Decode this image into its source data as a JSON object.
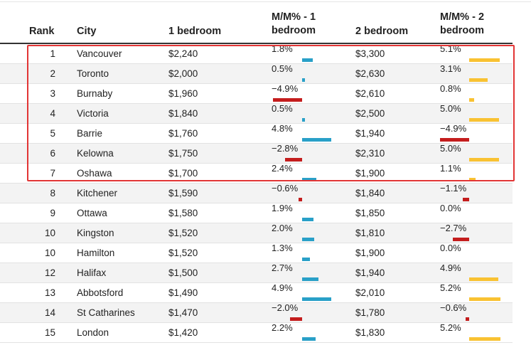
{
  "columns": {
    "rank": "Rank",
    "city": "City",
    "one_bed": "1 bedroom",
    "mm1_line1": "M/M% - 1",
    "mm1_line2": "bedroom",
    "two_bed": "2 bedroom",
    "mm2_line1": "M/M% - 2",
    "mm2_line2": "bedroom"
  },
  "colors": {
    "positive": "#29a0c8",
    "negative": "#c41d1d",
    "positive_2br": "#f9c232",
    "highlight": "#e23535"
  },
  "highlighted_ranks": [
    1,
    2,
    3,
    4,
    5,
    6,
    7
  ],
  "rows": [
    {
      "rank": "1",
      "city": "Vancouver",
      "one_bed": "$2,240",
      "mm1": "1.8%",
      "mm1_val": 1.8,
      "two_bed": "$3,300",
      "mm2": "5.1%",
      "mm2_val": 5.1
    },
    {
      "rank": "2",
      "city": "Toronto",
      "one_bed": "$2,000",
      "mm1": "0.5%",
      "mm1_val": 0.5,
      "two_bed": "$2,630",
      "mm2": "3.1%",
      "mm2_val": 3.1
    },
    {
      "rank": "3",
      "city": "Burnaby",
      "one_bed": "$1,960",
      "mm1": "−4.9%",
      "mm1_val": -4.9,
      "two_bed": "$2,610",
      "mm2": "0.8%",
      "mm2_val": 0.8
    },
    {
      "rank": "4",
      "city": "Victoria",
      "one_bed": "$1,840",
      "mm1": "0.5%",
      "mm1_val": 0.5,
      "two_bed": "$2,500",
      "mm2": "5.0%",
      "mm2_val": 5.0
    },
    {
      "rank": "5",
      "city": "Barrie",
      "one_bed": "$1,760",
      "mm1": "4.8%",
      "mm1_val": 4.8,
      "two_bed": "$1,940",
      "mm2": "−4.9%",
      "mm2_val": -4.9
    },
    {
      "rank": "6",
      "city": "Kelowna",
      "one_bed": "$1,750",
      "mm1": "−2.8%",
      "mm1_val": -2.8,
      "two_bed": "$2,310",
      "mm2": "5.0%",
      "mm2_val": 5.0
    },
    {
      "rank": "7",
      "city": "Oshawa",
      "one_bed": "$1,700",
      "mm1": "2.4%",
      "mm1_val": 2.4,
      "two_bed": "$1,900",
      "mm2": "1.1%",
      "mm2_val": 1.1
    },
    {
      "rank": "8",
      "city": "Kitchener",
      "one_bed": "$1,590",
      "mm1": "−0.6%",
      "mm1_val": -0.6,
      "two_bed": "$1,840",
      "mm2": "−1.1%",
      "mm2_val": -1.1
    },
    {
      "rank": "9",
      "city": "Ottawa",
      "one_bed": "$1,580",
      "mm1": "1.9%",
      "mm1_val": 1.9,
      "two_bed": "$1,850",
      "mm2": "0.0%",
      "mm2_val": 0.0
    },
    {
      "rank": "10",
      "city": "Kingston",
      "one_bed": "$1,520",
      "mm1": "2.0%",
      "mm1_val": 2.0,
      "two_bed": "$1,810",
      "mm2": "−2.7%",
      "mm2_val": -2.7
    },
    {
      "rank": "10",
      "city": "Hamilton",
      "one_bed": "$1,520",
      "mm1": "1.3%",
      "mm1_val": 1.3,
      "two_bed": "$1,900",
      "mm2": "0.0%",
      "mm2_val": 0.0
    },
    {
      "rank": "12",
      "city": "Halifax",
      "one_bed": "$1,500",
      "mm1": "2.7%",
      "mm1_val": 2.7,
      "two_bed": "$1,940",
      "mm2": "4.9%",
      "mm2_val": 4.9
    },
    {
      "rank": "13",
      "city": "Abbotsford",
      "one_bed": "$1,490",
      "mm1": "4.9%",
      "mm1_val": 4.9,
      "two_bed": "$2,010",
      "mm2": "5.2%",
      "mm2_val": 5.2
    },
    {
      "rank": "14",
      "city": "St Catharines",
      "one_bed": "$1,470",
      "mm1": "−2.0%",
      "mm1_val": -2.0,
      "two_bed": "$1,780",
      "mm2": "−0.6%",
      "mm2_val": -0.6
    },
    {
      "rank": "15",
      "city": "London",
      "one_bed": "$1,420",
      "mm1": "2.2%",
      "mm1_val": 2.2,
      "two_bed": "$1,830",
      "mm2": "5.2%",
      "mm2_val": 5.2
    }
  ]
}
